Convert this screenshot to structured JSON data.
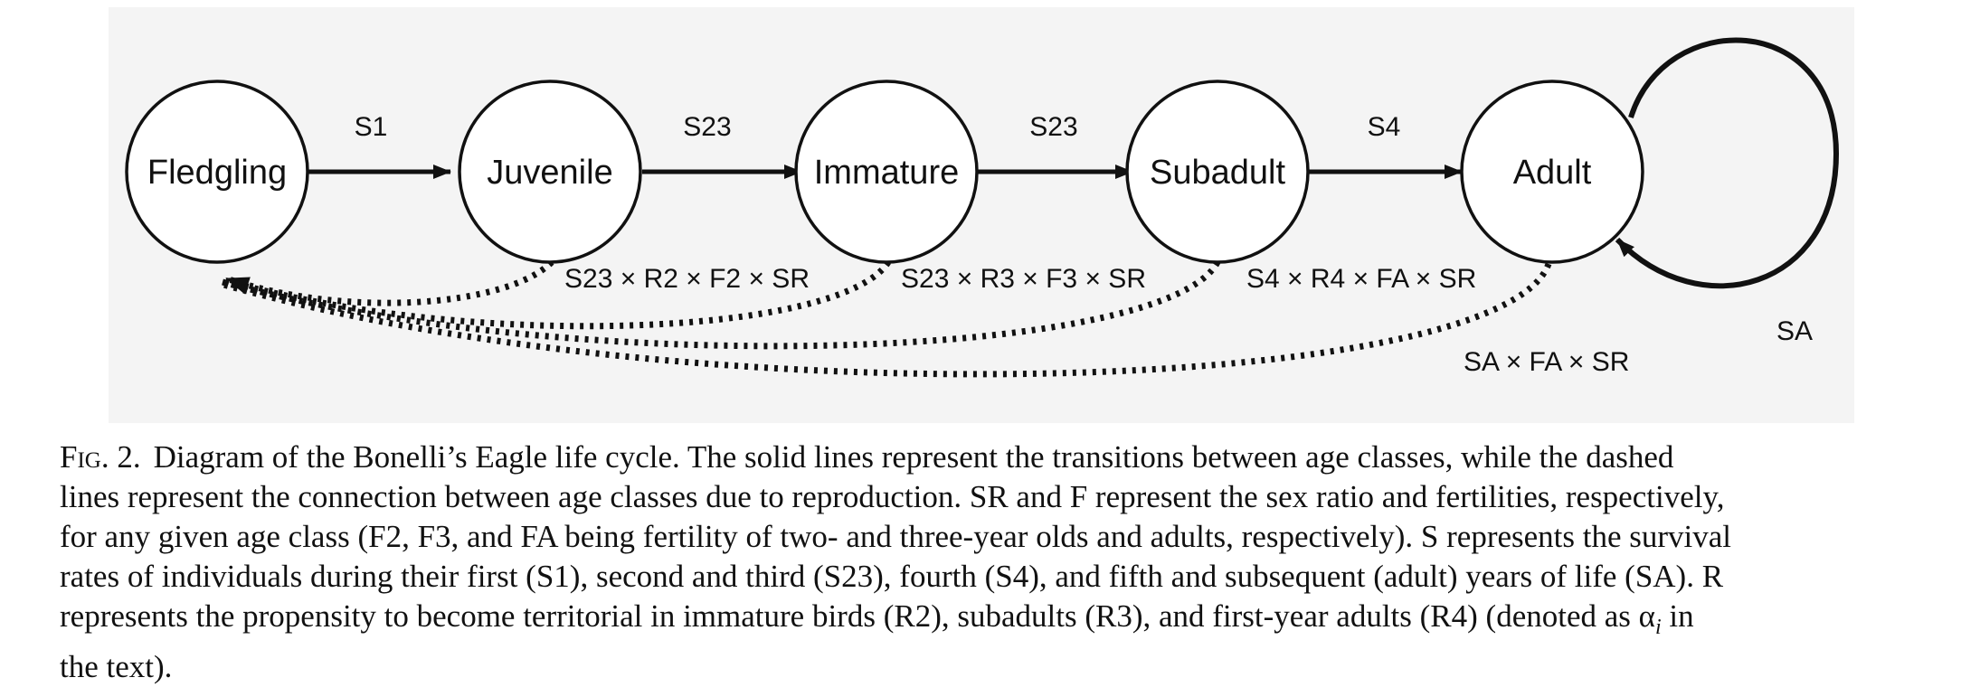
{
  "diagram": {
    "nodes": [
      {
        "id": "fledgling",
        "label": "Fledgling"
      },
      {
        "id": "juvenile",
        "label": "Juvenile"
      },
      {
        "id": "immature",
        "label": "Immature"
      },
      {
        "id": "subadult",
        "label": "Subadult"
      },
      {
        "id": "adult",
        "label": "Adult"
      }
    ],
    "transitions": [
      {
        "from": "fledgling",
        "to": "juvenile",
        "label": "S1"
      },
      {
        "from": "juvenile",
        "to": "immature",
        "label": "S23"
      },
      {
        "from": "immature",
        "to": "subadult",
        "label": "S23"
      },
      {
        "from": "subadult",
        "to": "adult",
        "label": "S4"
      },
      {
        "from": "adult",
        "to": "adult",
        "label": "SA"
      }
    ],
    "reproduction": [
      {
        "from": "juvenile",
        "to": "fledgling",
        "label": "S23 × R2 × F2 × SR"
      },
      {
        "from": "immature",
        "to": "fledgling",
        "label": "S23 × R3 × F3 × SR"
      },
      {
        "from": "subadult",
        "to": "fledgling",
        "label": "S4 × R4 × FA × SR"
      },
      {
        "from": "adult",
        "to": "fledgling",
        "label": "SA × FA × SR"
      }
    ]
  },
  "caption": {
    "figure_label": "Fig. 2.",
    "lines": [
      "Diagram of the Bonelli’s Eagle life cycle. The solid lines represent the transitions between age classes, while the dashed",
      "lines represent the connection between age classes due to reproduction. SR and F represent the sex ratio and fertilities, respectively,",
      "for any given age class (F2, F3, and FA being fertility of two- and three-year olds and adults, respectively). S represents the survival",
      "rates of individuals during their first (S1), second and third (S23), fourth (S4), and fifth and subsequent (adult) years of life (SA). R",
      "represents the propensity to become territorial in immature birds (R2), subadults (R3), and first-year adults (R4) (denoted as α",
      "the text)."
    ],
    "alpha_subscript": "i",
    "alpha_suffix": " in"
  }
}
